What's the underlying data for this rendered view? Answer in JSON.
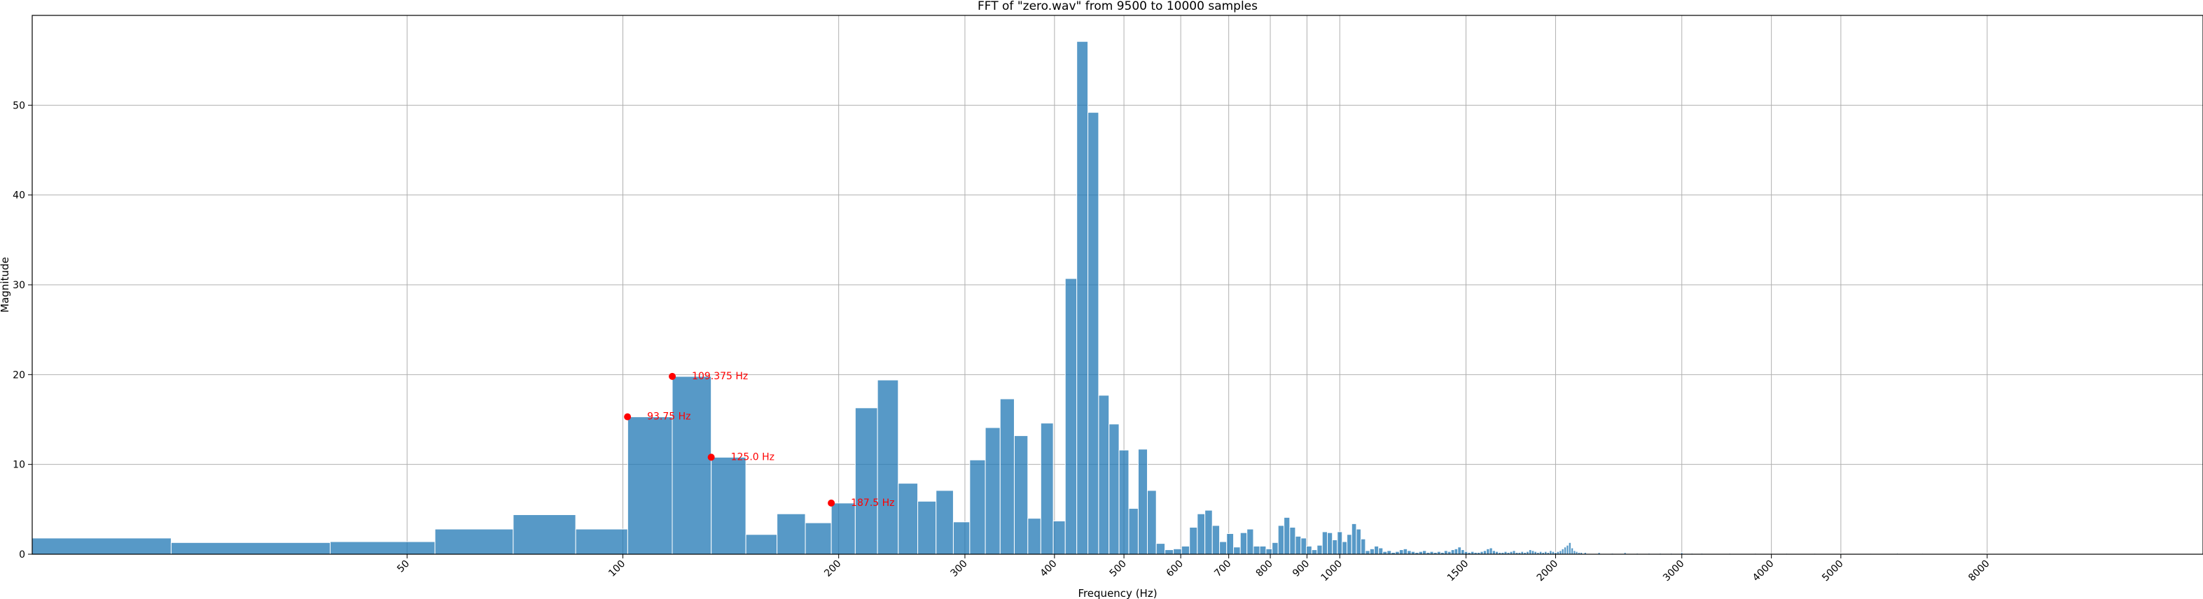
{
  "chart_data": {
    "type": "bar",
    "title": "FFT of \"zero.wav\" from 9500 to 10000 samples",
    "xlabel": "Frequency (Hz)",
    "ylabel": "Magnitude",
    "x_scale": "log",
    "xlim": [
      15,
      16000
    ],
    "ylim": [
      0,
      60
    ],
    "grid": true,
    "color": "#1f77b4",
    "bin_width_hz": 15.625,
    "x_ticks": [
      50,
      100,
      200,
      300,
      400,
      500,
      600,
      700,
      800,
      900,
      1000,
      1500,
      2000,
      3000,
      4000,
      5000,
      8000
    ],
    "y_ticks": [
      0,
      10,
      20,
      30,
      40,
      50
    ],
    "bins": [
      [
        15.625,
        1.8
      ],
      [
        31.25,
        1.3
      ],
      [
        46.875,
        1.4
      ],
      [
        62.5,
        2.8
      ],
      [
        78.125,
        4.4
      ],
      [
        93.75,
        2.8
      ],
      [
        109.375,
        15.3
      ],
      [
        125.0,
        19.8
      ],
      [
        140.625,
        10.8
      ],
      [
        156.25,
        2.2
      ],
      [
        171.875,
        4.5
      ],
      [
        187.5,
        3.5
      ],
      [
        203.125,
        5.7
      ],
      [
        218.75,
        16.3
      ],
      [
        234.375,
        19.4
      ],
      [
        250.0,
        7.9
      ],
      [
        265.625,
        5.9
      ],
      [
        281.25,
        7.1
      ],
      [
        296.875,
        3.6
      ],
      [
        312.5,
        10.5
      ],
      [
        328.125,
        14.1
      ],
      [
        343.75,
        17.3
      ],
      [
        359.375,
        13.2
      ],
      [
        375.0,
        4.0
      ],
      [
        390.625,
        14.6
      ],
      [
        406.25,
        3.7
      ],
      [
        421.875,
        30.7
      ],
      [
        437.5,
        57.1
      ],
      [
        453.125,
        49.2
      ],
      [
        468.75,
        17.7
      ],
      [
        484.375,
        14.5
      ],
      [
        500.0,
        11.6
      ],
      [
        515.625,
        5.1
      ],
      [
        531.25,
        11.7
      ],
      [
        546.875,
        7.1
      ],
      [
        562.5,
        1.2
      ],
      [
        578.125,
        0.5
      ],
      [
        593.75,
        0.6
      ],
      [
        609.375,
        0.9
      ],
      [
        625.0,
        3.0
      ],
      [
        640.625,
        4.5
      ],
      [
        656.25,
        4.9
      ],
      [
        671.875,
        3.2
      ],
      [
        687.5,
        1.4
      ],
      [
        703.125,
        2.3
      ],
      [
        718.75,
        0.8
      ],
      [
        734.375,
        2.4
      ],
      [
        750.0,
        2.8
      ],
      [
        765.625,
        0.9
      ],
      [
        781.25,
        0.9
      ],
      [
        796.875,
        0.6
      ],
      [
        812.5,
        1.3
      ],
      [
        828.125,
        3.2
      ],
      [
        843.75,
        4.1
      ],
      [
        859.375,
        3.0
      ],
      [
        875.0,
        2.0
      ],
      [
        890.625,
        1.8
      ],
      [
        906.25,
        0.9
      ],
      [
        921.875,
        0.5
      ],
      [
        937.5,
        1.0
      ],
      [
        953.125,
        2.5
      ],
      [
        968.75,
        2.4
      ],
      [
        984.375,
        1.6
      ],
      [
        1000.0,
        2.5
      ],
      [
        1015.625,
        1.4
      ],
      [
        1031.25,
        2.2
      ],
      [
        1046.875,
        3.4
      ],
      [
        1062.5,
        2.8
      ],
      [
        1078.125,
        1.7
      ],
      [
        1093.75,
        0.4
      ],
      [
        1109.375,
        0.6
      ],
      [
        1125.0,
        0.9
      ],
      [
        1140.625,
        0.7
      ],
      [
        1156.25,
        0.3
      ],
      [
        1171.875,
        0.4
      ],
      [
        1187.5,
        0.2
      ],
      [
        1203.125,
        0.3
      ],
      [
        1218.75,
        0.5
      ],
      [
        1234.375,
        0.6
      ],
      [
        1250.0,
        0.4
      ],
      [
        1265.625,
        0.3
      ],
      [
        1281.25,
        0.2
      ],
      [
        1296.875,
        0.3
      ],
      [
        1312.5,
        0.4
      ],
      [
        1328.125,
        0.2
      ],
      [
        1343.75,
        0.3
      ],
      [
        1359.375,
        0.2
      ],
      [
        1375.0,
        0.3
      ],
      [
        1390.625,
        0.2
      ],
      [
        1406.25,
        0.4
      ],
      [
        1421.875,
        0.3
      ],
      [
        1437.5,
        0.5
      ],
      [
        1453.125,
        0.6
      ],
      [
        1468.75,
        0.8
      ],
      [
        1484.375,
        0.5
      ],
      [
        1500.0,
        0.3
      ],
      [
        1515.625,
        0.2
      ],
      [
        1531.25,
        0.3
      ],
      [
        1546.875,
        0.2
      ],
      [
        1562.5,
        0.2
      ],
      [
        1578.125,
        0.3
      ],
      [
        1593.75,
        0.4
      ],
      [
        1609.375,
        0.6
      ],
      [
        1625.0,
        0.7
      ],
      [
        1640.625,
        0.4
      ],
      [
        1656.25,
        0.3
      ],
      [
        1671.875,
        0.2
      ],
      [
        1687.5,
        0.2
      ],
      [
        1703.125,
        0.3
      ],
      [
        1718.75,
        0.2
      ],
      [
        1734.375,
        0.3
      ],
      [
        1750.0,
        0.4
      ],
      [
        1765.625,
        0.2
      ],
      [
        1781.25,
        0.2
      ],
      [
        1796.875,
        0.3
      ],
      [
        1812.5,
        0.2
      ],
      [
        1828.125,
        0.3
      ],
      [
        1843.75,
        0.5
      ],
      [
        1859.375,
        0.4
      ],
      [
        1875.0,
        0.3
      ],
      [
        1890.625,
        0.2
      ],
      [
        1906.25,
        0.3
      ],
      [
        1921.875,
        0.2
      ],
      [
        1937.5,
        0.3
      ],
      [
        1953.125,
        0.2
      ],
      [
        1968.75,
        0.4
      ],
      [
        1984.375,
        0.3
      ],
      [
        2000.0,
        0.2
      ],
      [
        2015.625,
        0.3
      ],
      [
        2031.25,
        0.4
      ],
      [
        2046.875,
        0.6
      ],
      [
        2062.5,
        0.8
      ],
      [
        2078.125,
        1.0
      ],
      [
        2093.75,
        1.3
      ],
      [
        2109.375,
        0.7
      ],
      [
        2125.0,
        0.4
      ],
      [
        2140.625,
        0.3
      ],
      [
        2156.25,
        0.2
      ],
      [
        2171.875,
        0.2
      ],
      [
        2200,
        0.2
      ],
      [
        2300,
        0.2
      ],
      [
        2400,
        0.1
      ],
      [
        2500,
        0.2
      ],
      [
        2600,
        0.1
      ],
      [
        2700,
        0.1
      ],
      [
        2800,
        0.1
      ],
      [
        2900,
        0.1
      ],
      [
        3000,
        0.2
      ],
      [
        3100,
        0.1
      ],
      [
        3200,
        0.1
      ],
      [
        3500,
        0.1
      ],
      [
        3800,
        0.1
      ],
      [
        4200,
        0.1
      ],
      [
        4600,
        0.1
      ],
      [
        5000,
        0.1
      ],
      [
        5500,
        0.1
      ],
      [
        6000,
        0.2
      ],
      [
        6500,
        0.2
      ],
      [
        7000,
        0.1
      ],
      [
        7500,
        0.1
      ],
      [
        8000,
        0.1
      ],
      [
        8500,
        0.1
      ],
      [
        9000,
        0.1
      ],
      [
        10000,
        0.1
      ],
      [
        11000,
        0.1
      ],
      [
        12000,
        0.1
      ],
      [
        13000,
        0.1
      ],
      [
        14000,
        0.1
      ],
      [
        15000,
        0.1
      ]
    ],
    "annotations": [
      {
        "x": 101.5,
        "y": 15.3,
        "text": "93.75 Hz"
      },
      {
        "x": 117.2,
        "y": 19.8,
        "text": "109.375 Hz"
      },
      {
        "x": 132.8,
        "y": 10.8,
        "text": "125.0 Hz"
      },
      {
        "x": 195.3,
        "y": 5.7,
        "text": "187.5 Hz"
      }
    ]
  }
}
